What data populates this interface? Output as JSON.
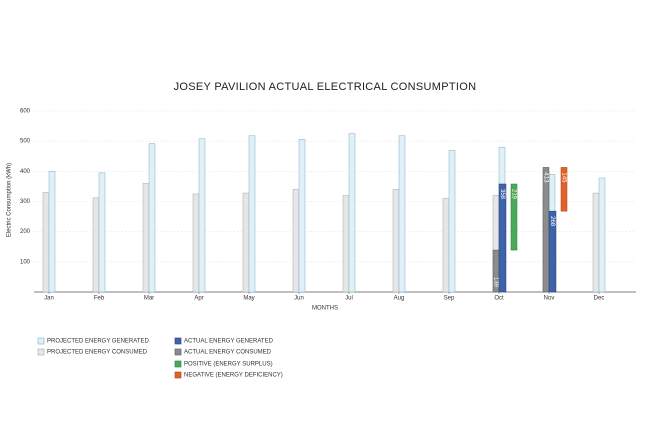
{
  "chart_data": {
    "type": "bar",
    "title": "JOSEY PAVILION ACTUAL ELECTRICAL CONSUMPTION",
    "y_label": "Electric Consumption (kWh)",
    "x_label": "MONTHS",
    "categories": [
      "Jan",
      "Feb",
      "Mar",
      "Apr",
      "May",
      "Jun",
      "Jul",
      "Aug",
      "Sep",
      "Oct",
      "Nov",
      "Dec"
    ],
    "series": [
      {
        "name": "PROJECTED ENERGY GENERATED",
        "color": "#dff0f6",
        "stroke": "#7fb3c8",
        "values": [
          400,
          395,
          492,
          508,
          518,
          506,
          525,
          518,
          470,
          480,
          390,
          378
        ]
      },
      {
        "name": "PROJECTED ENERGY CONSUMED",
        "color": "#e6e6e6",
        "stroke": "#a8a8a8",
        "values": [
          330,
          312,
          360,
          325,
          328,
          340,
          320,
          340,
          310,
          320,
          330,
          328
        ]
      },
      {
        "name": "ACTUAL ENERGY GENERATED",
        "color": "#3f63a8",
        "stroke": "#24407a",
        "values": [
          null,
          null,
          null,
          null,
          null,
          null,
          null,
          null,
          null,
          358,
          268,
          null
        ]
      },
      {
        "name": "ACTUAL ENERGY CONSUMED",
        "color": "#8c8c8c",
        "stroke": "#555555",
        "values": [
          null,
          null,
          null,
          null,
          null,
          null,
          null,
          null,
          null,
          139,
          413,
          null
        ]
      },
      {
        "name": "POSITIVE (ENERGY SURPLUS)",
        "color": "#4aaa5a",
        "stroke": "#2d7a3a",
        "values": [
          null,
          null,
          null,
          null,
          null,
          null,
          null,
          null,
          null,
          219,
          null,
          null
        ]
      },
      {
        "name": "NEGATIVE (ENERGY DEFICIENCY)",
        "color": "#e0622a",
        "stroke": "#a8441a",
        "values": [
          null,
          null,
          null,
          null,
          null,
          null,
          null,
          null,
          null,
          null,
          145,
          null
        ]
      }
    ],
    "ylim": [
      0,
      600
    ],
    "yticks": [
      100,
      200,
      300,
      400,
      500,
      600
    ],
    "grid": true
  }
}
